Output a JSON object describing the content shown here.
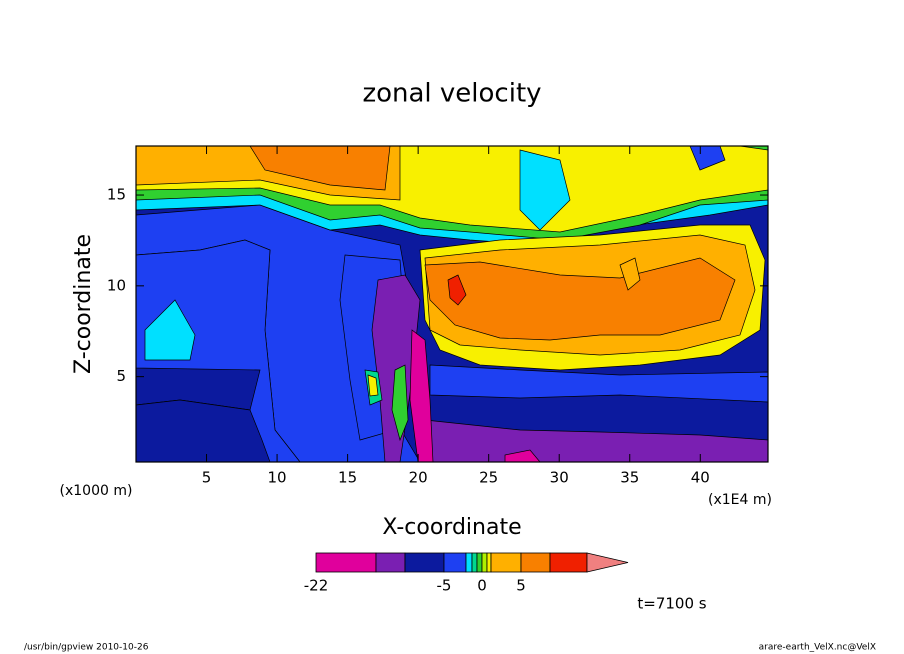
{
  "chart_data": {
    "type": "contour",
    "title": "zonal velocity",
    "x_label": "X-coordinate",
    "y_label": "Z-coordinate",
    "x_unit_left": "(x1000 m)",
    "x_unit_right": "(x1E4 m)",
    "xlim": [
      0,
      44.8
    ],
    "xticks": [
      5,
      10,
      15,
      20,
      25,
      30,
      35,
      40
    ],
    "ylim": [
      0.3,
      17.7
    ],
    "yticks": [
      5,
      10,
      15
    ],
    "colorbar": {
      "levels": [
        -22,
        -15,
        -10,
        -5,
        -3,
        -2,
        -1,
        0,
        1,
        2,
        5,
        10,
        15
      ],
      "colors": [
        "#e0009c",
        "#7a1fb2",
        "#0c1a9e",
        "#1e40f2",
        "#00e0ff",
        "#00d890",
        "#30d030",
        "#b0f000",
        "#f8f000",
        "#ffb000",
        "#f88000",
        "#f02000",
        "#f08080"
      ],
      "ticks": [
        -22,
        -5,
        0,
        5
      ]
    },
    "annotation": "t=7100 s",
    "footer_left": "/usr/bin/gpview  2010-10-26",
    "footer_right": "arare-earth_VelX.nc@VelX"
  }
}
